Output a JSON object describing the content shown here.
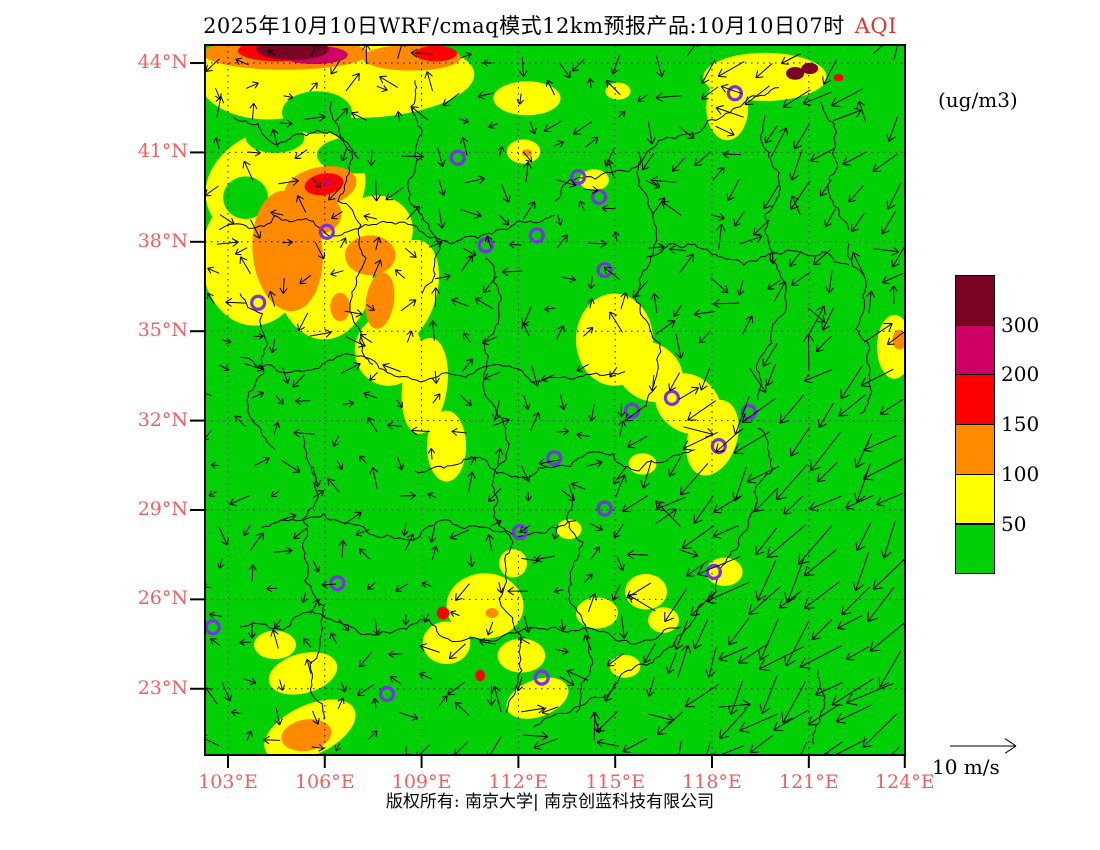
{
  "title": {
    "text": "2025年10月10日WRF/cmaq模式12km预报产品:10月10日07时",
    "highlight": "AQI"
  },
  "units_label": "(ug/m3)",
  "wind_scale_label": "10 m/s",
  "copyright": "版权所有: 南京大学| 南京创蓝科技有限公司",
  "colors": {
    "green": "#00d004",
    "yellow": "#ffff00",
    "orange": "#ff8a00",
    "red": "#fe0000",
    "magenta": "#ce0065",
    "maroon": "#7b0323",
    "purple": "#7e2fe8",
    "axis_red": "#f75d5d",
    "line_black": "#000000"
  },
  "axes": {
    "lat_ticks": [
      {
        "label": "44°N",
        "f": 0.0254
      },
      {
        "label": "41°N",
        "f": 0.1513
      },
      {
        "label": "38°N",
        "f": 0.2772
      },
      {
        "label": "35°N",
        "f": 0.4031
      },
      {
        "label": "32°N",
        "f": 0.529
      },
      {
        "label": "29°N",
        "f": 0.6549
      },
      {
        "label": "26°N",
        "f": 0.7808
      },
      {
        "label": "23°N",
        "f": 0.9067
      }
    ],
    "lon_ticks": [
      {
        "label": "103°E",
        "f": 0.0329
      },
      {
        "label": "106°E",
        "f": 0.1711
      },
      {
        "label": "109°E",
        "f": 0.3094
      },
      {
        "label": "112°E",
        "f": 0.4477
      },
      {
        "label": "115°E",
        "f": 0.586
      },
      {
        "label": "118°E",
        "f": 0.7243
      },
      {
        "label": "121°E",
        "f": 0.8626
      },
      {
        "label": "124°E",
        "f": 0.9997
      }
    ]
  },
  "legend": {
    "cells_top_to_bottom": [
      "maroon",
      "magenta",
      "red",
      "orange",
      "yellow",
      "green"
    ],
    "boundary_labels": [
      "300",
      "200",
      "150",
      "100",
      "50"
    ]
  },
  "map_data": {
    "variable": "AQI",
    "unit": "ug/m3",
    "aqi_scale_levels": [
      {
        "upto": 50,
        "color": "green"
      },
      {
        "upto": 100,
        "color": "yellow"
      },
      {
        "upto": 150,
        "color": "orange"
      },
      {
        "upto": 200,
        "color": "red"
      },
      {
        "upto": 300,
        "color": "magenta"
      },
      {
        "upto": "300+",
        "color": "maroon"
      }
    ],
    "aqi_regions": [
      [
        "yellow",
        0.09,
        0.045,
        0.1,
        0.06,
        0
      ],
      [
        "yellow",
        0.24,
        0.05,
        0.145,
        0.052,
        -4
      ],
      [
        "yellow",
        0.46,
        0.075,
        0.048,
        0.024,
        0
      ],
      [
        "yellow",
        0.115,
        0.2,
        0.115,
        0.085,
        -10
      ],
      [
        "yellow",
        0.07,
        0.3,
        0.075,
        0.095,
        0
      ],
      [
        "yellow",
        0.17,
        0.31,
        0.072,
        0.105,
        0
      ],
      [
        "yellow",
        0.245,
        0.26,
        0.052,
        0.048,
        0
      ],
      [
        "yellow",
        0.285,
        0.35,
        0.045,
        0.078,
        18
      ],
      [
        "yellow",
        0.262,
        0.43,
        0.048,
        0.05,
        0
      ],
      [
        "yellow",
        0.314,
        0.48,
        0.032,
        0.068,
        8
      ],
      [
        "yellow",
        0.345,
        0.565,
        0.028,
        0.05,
        0
      ],
      [
        "yellow",
        0.585,
        0.415,
        0.055,
        0.065,
        0
      ],
      [
        "yellow",
        0.635,
        0.46,
        0.05,
        0.04,
        32
      ],
      [
        "yellow",
        0.69,
        0.505,
        0.05,
        0.04,
        35
      ],
      [
        "yellow",
        0.725,
        0.553,
        0.035,
        0.055,
        18
      ],
      [
        "yellow",
        0.8,
        0.045,
        0.088,
        0.034,
        0
      ],
      [
        "yellow",
        0.746,
        0.088,
        0.03,
        0.046,
        0
      ],
      [
        "yellow",
        0.455,
        0.15,
        0.024,
        0.017,
        0
      ],
      [
        "yellow",
        0.556,
        0.19,
        0.021,
        0.015,
        0
      ],
      [
        "yellow",
        0.59,
        0.065,
        0.018,
        0.012,
        0
      ],
      [
        "yellow",
        0.4,
        0.79,
        0.055,
        0.046,
        0
      ],
      [
        "yellow",
        0.345,
        0.842,
        0.034,
        0.03,
        0
      ],
      [
        "yellow",
        0.452,
        0.86,
        0.034,
        0.024,
        0
      ],
      [
        "yellow",
        0.56,
        0.8,
        0.03,
        0.022,
        0
      ],
      [
        "yellow",
        0.63,
        0.77,
        0.03,
        0.025,
        0
      ],
      [
        "yellow",
        0.14,
        0.885,
        0.05,
        0.028,
        -15
      ],
      [
        "yellow",
        0.1,
        0.845,
        0.03,
        0.02,
        0
      ],
      [
        "yellow",
        0.475,
        0.92,
        0.046,
        0.026,
        -20
      ],
      [
        "yellow",
        0.15,
        0.965,
        0.07,
        0.035,
        -25
      ],
      [
        "yellow",
        0.6,
        0.875,
        0.022,
        0.016,
        0
      ],
      [
        "yellow",
        0.655,
        0.81,
        0.022,
        0.018,
        0
      ],
      [
        "yellow",
        0.44,
        0.73,
        0.02,
        0.02,
        0
      ],
      [
        "yellow",
        0.52,
        0.682,
        0.018,
        0.014,
        0
      ],
      [
        "yellow",
        0.742,
        0.742,
        0.026,
        0.02,
        0
      ],
      [
        "yellow",
        0.625,
        0.59,
        0.02,
        0.015,
        0
      ],
      [
        "yellow",
        0.985,
        0.425,
        0.025,
        0.045,
        0
      ],
      [
        "green",
        0.16,
        0.095,
        0.05,
        0.03,
        0
      ],
      [
        "green",
        0.1,
        0.13,
        0.042,
        0.022,
        0
      ],
      [
        "green",
        0.215,
        0.155,
        0.055,
        0.026,
        0
      ],
      [
        "green",
        0.058,
        0.215,
        0.032,
        0.03,
        0
      ],
      [
        "orange",
        0.115,
        0.012,
        0.118,
        0.023,
        0
      ],
      [
        "orange",
        0.295,
        0.018,
        0.07,
        0.018,
        0
      ],
      [
        "orange",
        0.165,
        0.2,
        0.052,
        0.028,
        -12
      ],
      [
        "orange",
        0.118,
        0.29,
        0.05,
        0.085,
        -5
      ],
      [
        "orange",
        0.155,
        0.238,
        0.04,
        0.03,
        0
      ],
      [
        "orange",
        0.236,
        0.296,
        0.036,
        0.028,
        0
      ],
      [
        "orange",
        0.25,
        0.36,
        0.02,
        0.04,
        8
      ],
      [
        "orange",
        0.193,
        0.369,
        0.014,
        0.02,
        0
      ],
      [
        "orange",
        0.145,
        0.972,
        0.036,
        0.022,
        -10
      ],
      [
        "orange",
        0.46,
        0.152,
        0.007,
        0.005,
        0
      ],
      [
        "orange",
        0.41,
        0.8,
        0.009,
        0.007,
        0
      ],
      [
        "orange",
        0.992,
        0.415,
        0.01,
        0.014,
        0
      ],
      [
        "red",
        0.105,
        0.008,
        0.058,
        0.015,
        0
      ],
      [
        "red",
        0.33,
        0.012,
        0.03,
        0.011,
        0
      ],
      [
        "red",
        0.17,
        0.196,
        0.028,
        0.015,
        -10
      ],
      [
        "red",
        0.34,
        0.8,
        0.009,
        0.009,
        0
      ],
      [
        "red",
        0.393,
        0.888,
        0.007,
        0.008,
        0
      ],
      [
        "red",
        0.905,
        0.046,
        0.007,
        0.005,
        0
      ],
      [
        "magenta",
        0.156,
        0.014,
        0.048,
        0.013,
        0
      ],
      [
        "magenta",
        0.176,
        0.194,
        0.006,
        0.005,
        0
      ],
      [
        "maroon",
        0.125,
        0.006,
        0.052,
        0.015,
        0
      ],
      [
        "maroon",
        0.843,
        0.04,
        0.013,
        0.009,
        0
      ],
      [
        "maroon",
        0.864,
        0.033,
        0.012,
        0.008,
        0
      ]
    ],
    "boundaries": [
      [
        [
          0.18,
          0.08
        ],
        [
          0.21,
          0.15
        ],
        [
          0.19,
          0.22
        ],
        [
          0.23,
          0.3
        ],
        [
          0.21,
          0.38
        ],
        [
          0.24,
          0.45
        ]
      ],
      [
        [
          0.3,
          0.05
        ],
        [
          0.31,
          0.12
        ],
        [
          0.29,
          0.2
        ],
        [
          0.33,
          0.27
        ],
        [
          0.31,
          0.35
        ]
      ],
      [
        [
          0.02,
          0.26
        ],
        [
          0.1,
          0.24
        ],
        [
          0.18,
          0.27
        ],
        [
          0.26,
          0.25
        ],
        [
          0.35,
          0.28
        ],
        [
          0.43,
          0.26
        ],
        [
          0.5,
          0.24
        ]
      ],
      [
        [
          0.05,
          0.44
        ],
        [
          0.14,
          0.46
        ],
        [
          0.23,
          0.44
        ],
        [
          0.32,
          0.47
        ],
        [
          0.42,
          0.45
        ],
        [
          0.52,
          0.47
        ],
        [
          0.6,
          0.46
        ]
      ],
      [
        [
          0.4,
          0.3
        ],
        [
          0.42,
          0.38
        ],
        [
          0.4,
          0.46
        ],
        [
          0.43,
          0.54
        ],
        [
          0.41,
          0.62
        ],
        [
          0.44,
          0.7
        ],
        [
          0.42,
          0.78
        ],
        [
          0.45,
          0.86
        ],
        [
          0.43,
          0.94
        ]
      ],
      [
        [
          0.3,
          0.6
        ],
        [
          0.38,
          0.58
        ],
        [
          0.46,
          0.61
        ],
        [
          0.54,
          0.58
        ],
        [
          0.62,
          0.6
        ],
        [
          0.7,
          0.57
        ]
      ],
      [
        [
          0.62,
          0.15
        ],
        [
          0.64,
          0.24
        ],
        [
          0.62,
          0.33
        ],
        [
          0.65,
          0.42
        ],
        [
          0.63,
          0.51
        ]
      ],
      [
        [
          0.5,
          0.22
        ],
        [
          0.58,
          0.18
        ],
        [
          0.66,
          0.13
        ],
        [
          0.74,
          0.1
        ],
        [
          0.82,
          0.06
        ]
      ],
      [
        [
          0.05,
          0.82
        ],
        [
          0.14,
          0.8
        ],
        [
          0.23,
          0.83
        ],
        [
          0.32,
          0.81
        ],
        [
          0.41,
          0.84
        ],
        [
          0.5,
          0.82
        ],
        [
          0.59,
          0.84
        ],
        [
          0.68,
          0.82
        ]
      ],
      [
        [
          0.79,
          0.54
        ],
        [
          0.81,
          0.6
        ],
        [
          0.78,
          0.66
        ],
        [
          0.76,
          0.71
        ],
        [
          0.73,
          0.77
        ],
        [
          0.69,
          0.82
        ],
        [
          0.64,
          0.87
        ],
        [
          0.58,
          0.91
        ],
        [
          0.52,
          0.94
        ],
        [
          0.47,
          0.96
        ]
      ],
      [
        [
          0.52,
          0.62
        ],
        [
          0.54,
          0.7
        ],
        [
          0.52,
          0.78
        ],
        [
          0.55,
          0.86
        ],
        [
          0.53,
          0.94
        ]
      ],
      [
        [
          0.14,
          0.55
        ],
        [
          0.16,
          0.63
        ],
        [
          0.14,
          0.71
        ],
        [
          0.17,
          0.79
        ],
        [
          0.15,
          0.87
        ],
        [
          0.17,
          0.95
        ]
      ],
      [
        [
          0.08,
          0.68
        ],
        [
          0.17,
          0.66
        ],
        [
          0.26,
          0.69
        ],
        [
          0.35,
          0.67
        ],
        [
          0.44,
          0.69
        ],
        [
          0.53,
          0.67
        ]
      ],
      [
        [
          0.63,
          0.3
        ],
        [
          0.7,
          0.28
        ],
        [
          0.77,
          0.31
        ],
        [
          0.84,
          0.29
        ],
        [
          0.92,
          0.31
        ]
      ],
      [
        [
          0.8,
          0.1
        ],
        [
          0.82,
          0.18
        ],
        [
          0.8,
          0.26
        ],
        [
          0.83,
          0.34
        ],
        [
          0.81,
          0.42
        ],
        [
          0.79,
          0.5
        ]
      ],
      [
        [
          0.875,
          0.88
        ],
        [
          0.885,
          0.93
        ],
        [
          0.87,
          0.985
        ]
      ],
      [
        [
          0.92,
          0.28
        ],
        [
          0.945,
          0.34
        ],
        [
          0.93,
          0.4
        ],
        [
          0.95,
          0.46
        ],
        [
          0.935,
          0.52
        ]
      ],
      [
        [
          0.88,
          0.08
        ],
        [
          0.9,
          0.14
        ],
        [
          0.89,
          0.2
        ],
        [
          0.92,
          0.26
        ]
      ],
      [
        [
          0.04,
          0.1
        ],
        [
          0.1,
          0.14
        ],
        [
          0.16,
          0.12
        ],
        [
          0.22,
          0.16
        ]
      ],
      [
        [
          0.05,
          0.35
        ],
        [
          0.09,
          0.42
        ],
        [
          0.06,
          0.5
        ],
        [
          0.1,
          0.57
        ]
      ]
    ],
    "city_markers": [
      [
        0.361,
        0.159
      ],
      [
        0.533,
        0.186
      ],
      [
        0.563,
        0.214
      ],
      [
        0.474,
        0.268
      ],
      [
        0.401,
        0.282
      ],
      [
        0.571,
        0.317
      ],
      [
        0.174,
        0.263
      ],
      [
        0.076,
        0.363
      ],
      [
        0.757,
        0.068
      ],
      [
        0.667,
        0.497
      ],
      [
        0.61,
        0.515
      ],
      [
        0.777,
        0.517
      ],
      [
        0.734,
        0.565
      ],
      [
        0.499,
        0.582
      ],
      [
        0.571,
        0.653
      ],
      [
        0.45,
        0.686
      ],
      [
        0.727,
        0.742
      ],
      [
        0.011,
        0.82
      ],
      [
        0.189,
        0.758
      ],
      [
        0.26,
        0.914
      ],
      [
        0.481,
        0.891
      ]
    ],
    "wind_field": {
      "reference_speed_ms": 10,
      "grid_spacing_px": 31,
      "seed": 20251010,
      "strong_flow": "northeasterly over southeast sea, pointing southwest",
      "weak_flow": "light variable over inland"
    }
  }
}
